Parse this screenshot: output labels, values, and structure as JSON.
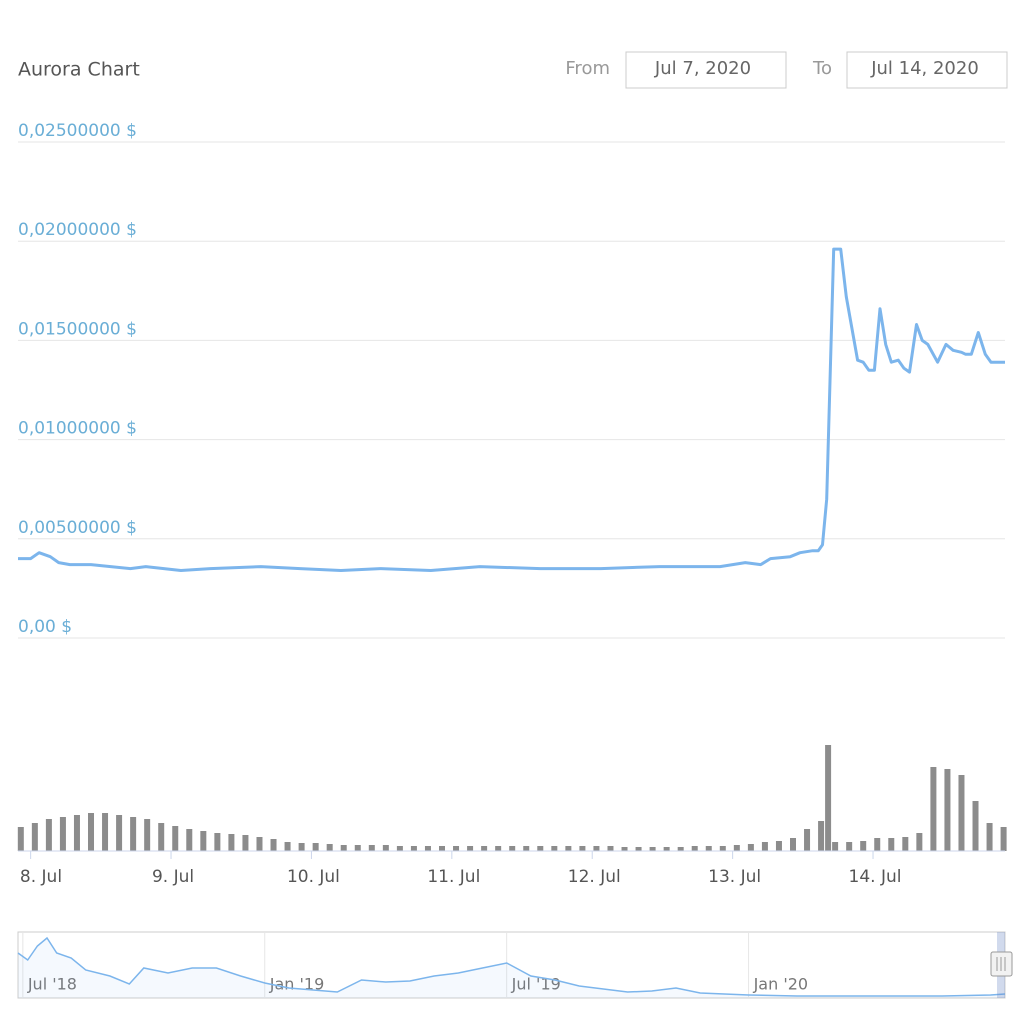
{
  "chart_data": {
    "type": "line",
    "title": "Aurora Chart",
    "from_label": "From",
    "from_value": "Jul 7, 2020",
    "to_label": "To",
    "to_value": "Jul 14, 2020",
    "color": "#7cb5ec",
    "grid": true,
    "x": [
      7.91,
      8.0,
      8.06,
      8.14,
      8.2,
      8.28,
      8.43,
      8.57,
      8.71,
      8.82,
      9.07,
      9.28,
      9.64,
      9.92,
      10.21,
      10.49,
      10.85,
      11.2,
      11.63,
      12.06,
      12.48,
      12.91,
      13.09,
      13.2,
      13.27,
      13.41,
      13.48,
      13.57,
      13.61,
      13.64,
      13.67,
      13.72,
      13.77,
      13.81,
      13.89,
      13.93,
      13.97,
      14.01,
      14.05,
      14.09,
      14.13,
      14.18,
      14.22,
      14.26,
      14.31,
      14.35,
      14.39,
      14.46,
      14.52,
      14.57,
      14.63,
      14.66,
      14.7,
      14.75,
      14.8,
      14.84,
      14.94
    ],
    "values": [
      0.004,
      0.004,
      0.0043,
      0.0041,
      0.0038,
      0.0037,
      0.0037,
      0.0036,
      0.0035,
      0.0036,
      0.0034,
      0.0035,
      0.0036,
      0.0035,
      0.0034,
      0.0035,
      0.0034,
      0.0036,
      0.0035,
      0.0035,
      0.0036,
      0.0036,
      0.0038,
      0.0037,
      0.004,
      0.0041,
      0.0043,
      0.0044,
      0.0044,
      0.0047,
      0.007,
      0.0196,
      0.0196,
      0.0172,
      0.014,
      0.0139,
      0.0135,
      0.0135,
      0.0166,
      0.0148,
      0.0139,
      0.014,
      0.0136,
      0.0134,
      0.0158,
      0.015,
      0.0148,
      0.0139,
      0.0148,
      0.0145,
      0.0144,
      0.0143,
      0.0143,
      0.0154,
      0.0143,
      0.0139,
      0.0139
    ],
    "xlim": [
      7.91,
      14.94
    ],
    "xticks": [
      {
        "value": 8,
        "label": "8. Jul"
      },
      {
        "value": 9,
        "label": "9. Jul"
      },
      {
        "value": 10,
        "label": "10. Jul"
      },
      {
        "value": 11,
        "label": "11. Jul"
      },
      {
        "value": 12,
        "label": "12. Jul"
      },
      {
        "value": 13,
        "label": "13. Jul"
      },
      {
        "value": 14,
        "label": "14. Jul"
      }
    ],
    "ylim": [
      0,
      0.025
    ],
    "yticks": [
      {
        "value": 0,
        "label": "0,00 $"
      },
      {
        "value": 0.005,
        "label": "0,00500000 $"
      },
      {
        "value": 0.01,
        "label": "0,01000000 $"
      },
      {
        "value": 0.015,
        "label": "0,01500000 $"
      },
      {
        "value": 0.02,
        "label": "0,02000000 $"
      },
      {
        "value": 0.025,
        "label": "0,02500000 $"
      }
    ],
    "volume": {
      "color": "#8c8c8c",
      "ylim": [
        0,
        110
      ],
      "x": [
        7.93,
        8.03,
        8.13,
        8.23,
        8.33,
        8.43,
        8.53,
        8.63,
        8.73,
        8.83,
        8.93,
        9.03,
        9.13,
        9.23,
        9.33,
        9.43,
        9.53,
        9.63,
        9.73,
        9.83,
        9.93,
        10.03,
        10.13,
        10.23,
        10.33,
        10.43,
        10.53,
        10.63,
        10.73,
        10.83,
        10.93,
        11.03,
        11.13,
        11.23,
        11.33,
        11.43,
        11.53,
        11.63,
        11.73,
        11.83,
        11.93,
        12.03,
        12.13,
        12.23,
        12.33,
        12.43,
        12.53,
        12.63,
        12.73,
        12.83,
        12.93,
        13.03,
        13.13,
        13.23,
        13.33,
        13.43,
        13.53,
        13.63,
        13.68,
        13.73,
        13.83,
        13.93,
        14.03,
        14.13,
        14.23,
        14.33,
        14.43,
        14.53,
        14.63,
        14.73,
        14.83,
        14.93
      ],
      "values": [
        24,
        28,
        32,
        34,
        36,
        38,
        38,
        36,
        34,
        32,
        28,
        25,
        22,
        20,
        18,
        17,
        16,
        14,
        12,
        9,
        8,
        8,
        7,
        6,
        6,
        6,
        6,
        5,
        5,
        5,
        5,
        5,
        5,
        5,
        5,
        5,
        5,
        5,
        5,
        5,
        5,
        5,
        5,
        4,
        4,
        4,
        4,
        4,
        5,
        5,
        5,
        6,
        7,
        9,
        10,
        13,
        22,
        30,
        106,
        9,
        9,
        10,
        13,
        13,
        14,
        18,
        84,
        82,
        76,
        50,
        28,
        24
      ]
    },
    "navigator": {
      "color": "#7cb5ec",
      "xlim": [
        2018.49,
        2020.53
      ],
      "ylim": [
        0,
        66
      ],
      "xticks": [
        {
          "value": 2018.5,
          "label": "Jul '18"
        },
        {
          "value": 2019.0,
          "label": "Jan '19"
        },
        {
          "value": 2019.5,
          "label": "Jul '19"
        },
        {
          "value": 2020.0,
          "label": "Jan '20"
        }
      ],
      "x": [
        2018.49,
        2018.51,
        2018.53,
        2018.55,
        2018.57,
        2018.6,
        2018.63,
        2018.68,
        2018.72,
        2018.75,
        2018.8,
        2018.85,
        2018.9,
        2018.95,
        2019.0,
        2019.05,
        2019.1,
        2019.15,
        2019.2,
        2019.25,
        2019.3,
        2019.35,
        2019.4,
        2019.45,
        2019.5,
        2019.55,
        2019.6,
        2019.65,
        2019.7,
        2019.75,
        2019.8,
        2019.85,
        2019.9,
        2019.95,
        2020.0,
        2020.1,
        2020.2,
        2020.3,
        2020.4,
        2020.5,
        2020.53
      ],
      "values": [
        45,
        38,
        52,
        60,
        45,
        40,
        28,
        22,
        14,
        30,
        25,
        30,
        30,
        22,
        15,
        10,
        8,
        6,
        18,
        16,
        17,
        22,
        25,
        30,
        35,
        22,
        18,
        12,
        9,
        6,
        7,
        10,
        5,
        4,
        3,
        2,
        2,
        2,
        2,
        3,
        4
      ]
    }
  }
}
